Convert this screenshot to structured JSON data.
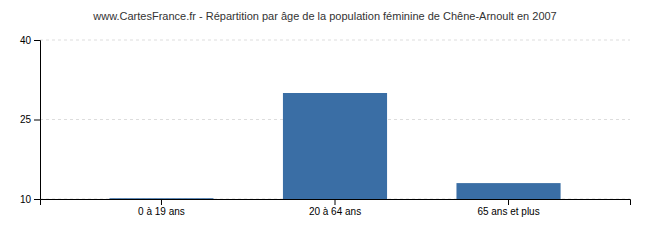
{
  "chart_data": {
    "type": "bar",
    "title": "www.CartesFrance.fr - Répartition par âge de la population féminine de Chêne-Arnoult en 2007",
    "categories": [
      "0 à 19 ans",
      "20 à 64 ans",
      "65 ans et plus"
    ],
    "values": [
      10.15,
      30,
      13
    ],
    "color": "#3a6ea5",
    "ylim": [
      10,
      40
    ],
    "yticks": [
      10,
      25,
      40
    ],
    "grid": true
  }
}
